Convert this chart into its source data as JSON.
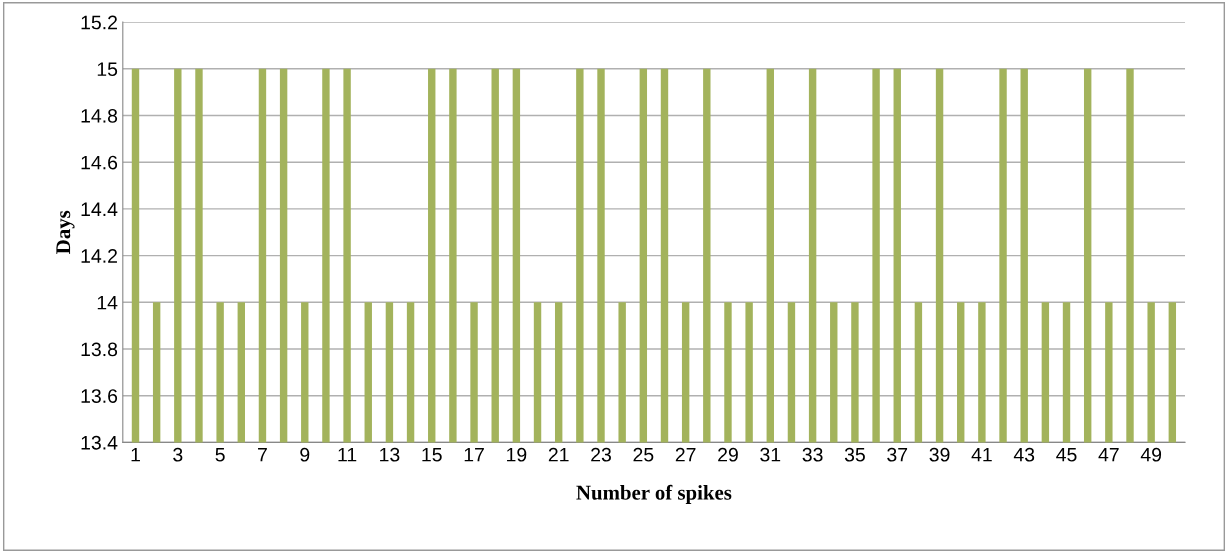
{
  "chart_data": {
    "type": "bar",
    "xlabel": "Number of spikes",
    "ylabel": "Days",
    "categories": [
      "1",
      null,
      "3",
      null,
      "5",
      null,
      "7",
      null,
      "9",
      null,
      "11",
      null,
      "13",
      null,
      "15",
      null,
      "17",
      null,
      "19",
      null,
      "21",
      null,
      "23",
      null,
      "25",
      null,
      "27",
      null,
      "29",
      null,
      "31",
      null,
      "33",
      null,
      "35",
      null,
      "37",
      null,
      "39",
      null,
      "41",
      null,
      "43",
      null,
      "45",
      null,
      "47",
      null,
      "49",
      null
    ],
    "values": [
      15,
      14,
      15,
      15,
      14,
      14,
      15,
      15,
      14,
      15,
      15,
      14,
      14,
      14,
      15,
      15,
      14,
      15,
      15,
      14,
      14,
      15,
      15,
      14,
      15,
      15,
      14,
      15,
      14,
      14,
      15,
      14,
      15,
      14,
      14,
      15,
      15,
      14,
      15,
      14,
      14,
      15,
      15,
      14,
      14,
      15,
      14,
      15,
      14,
      14
    ],
    "color": "#a3b35c",
    "ylim": [
      13.4,
      15.2
    ],
    "yticks": [
      {
        "value": 13.4,
        "label": "13.4"
      },
      {
        "value": 13.6,
        "label": "13.6"
      },
      {
        "value": 13.8,
        "label": "13.8"
      },
      14,
      {
        "value": 14.2,
        "label": "14.2"
      },
      {
        "value": 14.4,
        "label": "14.4"
      },
      {
        "value": 14.6,
        "label": "14.6"
      },
      {
        "value": 14.8,
        "label": "14.8"
      },
      15,
      {
        "value": 15.2,
        "label": "15.2"
      }
    ],
    "grid": "y"
  }
}
